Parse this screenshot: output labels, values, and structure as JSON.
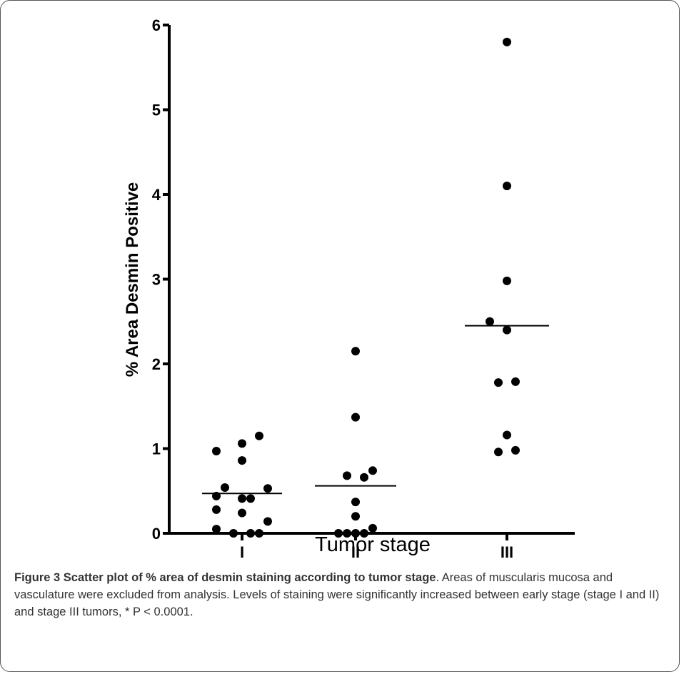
{
  "figure": {
    "caption_label": "Figure 3",
    "caption_title": "Scatter plot of % area of desmin staining according to tumor stage",
    "caption_text": ". Areas of muscularis mucosa and vasculature were excluded from analysis. Levels of staining were significantly increased between early stage (stage I and II) and stage III tumors, * P < 0.0001."
  },
  "chart_data": {
    "type": "scatter",
    "title": "",
    "xlabel": "Tumor stage",
    "ylabel": "% Area Desmin Positive",
    "categories": [
      "I",
      "II",
      "III"
    ],
    "ylim": [
      0,
      6
    ],
    "yticks": [
      "0",
      "1",
      "2",
      "3",
      "4",
      "5",
      "6"
    ],
    "grid": false,
    "legend": "none",
    "point_color": "#000000",
    "series": [
      {
        "category": "I",
        "mean": 0.47,
        "points": [
          {
            "offset": -3,
            "y": 0.97
          },
          {
            "offset": -2,
            "y": 0.54
          },
          {
            "offset": -3,
            "y": 0.44
          },
          {
            "offset": -3,
            "y": 0.28
          },
          {
            "offset": -3,
            "y": 0.05
          },
          {
            "offset": -1,
            "y": 0.0
          },
          {
            "offset": 0,
            "y": 1.06
          },
          {
            "offset": 0,
            "y": 0.86
          },
          {
            "offset": 0,
            "y": 0.41
          },
          {
            "offset": 0,
            "y": 0.24
          },
          {
            "offset": 1,
            "y": 0.0
          },
          {
            "offset": 1,
            "y": 0.41
          },
          {
            "offset": 2,
            "y": 1.15
          },
          {
            "offset": 3,
            "y": 0.53
          },
          {
            "offset": 3,
            "y": 0.14
          },
          {
            "offset": 2,
            "y": 0.0
          }
        ]
      },
      {
        "category": "II",
        "mean": 0.56,
        "points": [
          {
            "offset": 0,
            "y": 2.15
          },
          {
            "offset": 0,
            "y": 1.37
          },
          {
            "offset": -1,
            "y": 0.68
          },
          {
            "offset": 1,
            "y": 0.66
          },
          {
            "offset": 2,
            "y": 0.74
          },
          {
            "offset": 0,
            "y": 0.37
          },
          {
            "offset": 0,
            "y": 0.2
          },
          {
            "offset": 2,
            "y": 0.06
          },
          {
            "offset": -2,
            "y": 0.0
          },
          {
            "offset": -1,
            "y": 0.0
          },
          {
            "offset": 0,
            "y": 0.0
          },
          {
            "offset": 1,
            "y": 0.0
          }
        ]
      },
      {
        "category": "III",
        "mean": 2.45,
        "points": [
          {
            "offset": 0,
            "y": 5.8
          },
          {
            "offset": 0,
            "y": 4.1
          },
          {
            "offset": 0,
            "y": 2.98
          },
          {
            "offset": -2,
            "y": 2.5
          },
          {
            "offset": 0,
            "y": 2.4
          },
          {
            "offset": -1,
            "y": 1.78
          },
          {
            "offset": 1,
            "y": 1.79
          },
          {
            "offset": 0,
            "y": 1.16
          },
          {
            "offset": -1,
            "y": 0.96
          },
          {
            "offset": 1,
            "y": 0.98
          }
        ]
      }
    ]
  }
}
